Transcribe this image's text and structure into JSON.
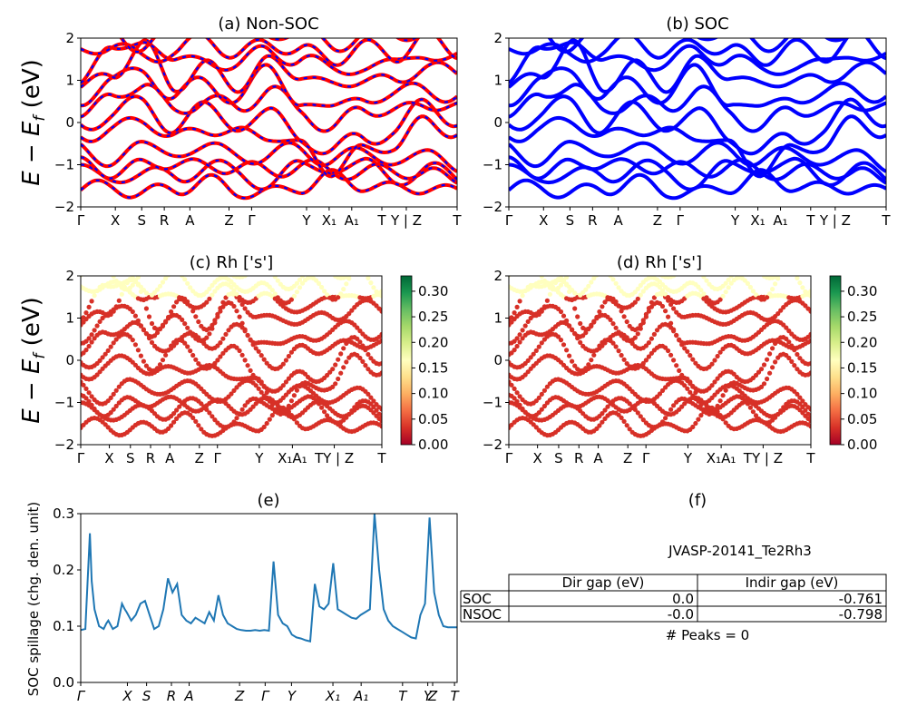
{
  "colors": {
    "bands_nonsoc_primary": "#ff0000",
    "bands_nonsoc_secondary": "#0000ff",
    "bands_soc": "#0000ff",
    "spillage_line": "#1f77b4",
    "colormap": [
      "#a50026",
      "#d73027",
      "#f46d43",
      "#fdae61",
      "#fee08b",
      "#ffffbf",
      "#d9ef8b",
      "#a6d96a",
      "#66bd63",
      "#1a9850",
      "#006837"
    ]
  },
  "kpath_labels": [
    "Γ",
    "X",
    "S",
    "R",
    "A",
    "Z",
    "Γ",
    "Y",
    "X₁",
    "A₁",
    "T",
    "Y | Z",
    "T"
  ],
  "spillage_kpath_labels": [
    "Γ",
    "X",
    "S",
    "R",
    "A",
    "Z",
    "Γ",
    "Y",
    "X₁",
    "A₁",
    "T",
    "Y",
    "Z",
    "T"
  ],
  "y_axis_label": "E − E_f (eV)",
  "panels": {
    "a": {
      "title": "(a) Non-SOC"
    },
    "b": {
      "title": "(b) SOC"
    },
    "c": {
      "title": "(c)  Rh ['s']"
    },
    "d": {
      "title": "(d) Rh ['s']"
    },
    "e": {
      "title": "(e)",
      "ylabel": "SOC spillage (chg. den. unit)"
    },
    "f": {
      "title": "(f)",
      "material": "JVASP-20141_Te2Rh3",
      "table": {
        "headers": [
          "",
          "Dir gap (eV)",
          "Indir gap (eV)"
        ],
        "rows": [
          [
            "SOC",
            "0.0",
            "-0.761"
          ],
          [
            "NSOC",
            "-0.0",
            "-0.798"
          ]
        ]
      },
      "peaks_text": "# Peaks = 0"
    }
  },
  "chart_data": [
    {
      "type": "line",
      "title": "(a) Non-SOC",
      "ylabel": "E − E_f (eV)",
      "ylim": [
        -2,
        2
      ],
      "yticks": [
        -2,
        -1,
        0,
        1,
        2
      ],
      "xticklabels": [
        "Γ",
        "X",
        "S",
        "R",
        "A",
        "Z",
        "Γ",
        "Y",
        "X₁",
        "A₁",
        "T",
        "Y | Z",
        "T"
      ],
      "series": [
        {
          "name": "",
          "values": [
            -1.6,
            -1.5,
            -1.7,
            -1.55,
            -1.4,
            -1.6,
            -1.7,
            -1.5,
            -1.3,
            -1.45,
            -1.6,
            -1.5,
            -1.7
          ]
        },
        {
          "name": "",
          "values": [
            -1.0,
            -1.15,
            -1.05,
            -0.9,
            -1.1,
            -1.0,
            -1.2,
            -1.0,
            -1.15,
            -1.2,
            -1.1,
            -1.25,
            -1.3
          ]
        },
        {
          "name": "",
          "values": [
            -0.3,
            -0.2,
            0.1,
            -0.4,
            -0.1,
            -0.3,
            -0.25,
            -0.6,
            -1.1,
            -0.7,
            -0.5,
            0.0,
            -0.2
          ]
        },
        {
          "name": "",
          "values": [
            0.3,
            0.5,
            1.0,
            0.2,
            0.6,
            0.3,
            0.8,
            0.3,
            -0.2,
            0.4,
            0.2,
            0.5,
            0.3
          ]
        },
        {
          "name": "",
          "values": [
            0.75,
            1.2,
            1.8,
            0.9,
            1.3,
            0.9,
            1.4,
            1.2,
            0.8,
            1.1,
            0.9,
            1.4,
            1.1
          ]
        },
        {
          "name": "",
          "values": [
            1.6,
            1.9,
            1.5,
            1.7,
            2.0,
            1.6,
            1.9,
            1.7,
            1.5,
            1.8,
            1.6,
            2.0,
            1.7
          ]
        }
      ]
    },
    {
      "type": "line",
      "title": "(b) SOC",
      "ylim": [
        -2,
        2
      ],
      "yticks": [
        -2,
        -1,
        0,
        1,
        2
      ],
      "xticklabels": [
        "Γ",
        "X",
        "S",
        "R",
        "A",
        "Z",
        "Γ",
        "Y",
        "X₁",
        "A₁",
        "T",
        "Y | Z",
        "T"
      ],
      "series": [
        {
          "name": "",
          "values": [
            -1.6,
            -1.5,
            -1.7,
            -1.55,
            -1.4,
            -1.6,
            -1.7,
            -1.5,
            -1.3,
            -1.45,
            -1.6,
            -1.5,
            -1.7
          ]
        },
        {
          "name": "",
          "values": [
            -1.0,
            -1.15,
            -1.05,
            -0.9,
            -1.1,
            -1.0,
            -1.2,
            -1.0,
            -1.15,
            -1.2,
            -1.1,
            -1.25,
            -1.3
          ]
        },
        {
          "name": "",
          "values": [
            -0.3,
            -0.2,
            0.1,
            -0.4,
            -0.1,
            -0.3,
            -0.25,
            -0.6,
            -1.1,
            -0.7,
            -0.5,
            0.0,
            -0.2
          ]
        },
        {
          "name": "",
          "values": [
            0.3,
            0.5,
            1.0,
            0.2,
            0.6,
            0.3,
            0.8,
            0.3,
            -0.2,
            0.4,
            0.2,
            0.5,
            0.3
          ]
        },
        {
          "name": "",
          "values": [
            0.75,
            1.2,
            1.8,
            0.9,
            1.3,
            0.9,
            1.4,
            1.2,
            0.8,
            1.1,
            0.9,
            1.4,
            1.1
          ]
        },
        {
          "name": "",
          "values": [
            1.6,
            1.9,
            1.5,
            1.7,
            2.0,
            1.6,
            1.9,
            1.7,
            1.5,
            1.8,
            1.6,
            2.0,
            1.7
          ]
        }
      ]
    },
    {
      "type": "scatter",
      "title": "(c)  Rh ['s']",
      "ylim": [
        -2,
        2
      ],
      "yticks": [
        -2,
        -1,
        0,
        1,
        2
      ],
      "colorbar": {
        "range": [
          0.0,
          0.33
        ],
        "ticks": [
          "0.00",
          "0.05",
          "0.10",
          "0.15",
          "0.20",
          "0.25",
          "0.30"
        ]
      },
      "xticklabels": [
        "Γ",
        "X",
        "S",
        "R",
        "A",
        "Z",
        "Γ",
        "Y",
        "X₁A₁",
        "TY | Z",
        "T"
      ]
    },
    {
      "type": "scatter",
      "title": "(d) Rh ['s']",
      "ylim": [
        -2,
        2
      ],
      "yticks": [
        -2,
        -1,
        0,
        1,
        2
      ],
      "colorbar": {
        "range": [
          0.0,
          0.33
        ],
        "ticks": [
          "0.00",
          "0.05",
          "0.10",
          "0.15",
          "0.20",
          "0.25",
          "0.30"
        ]
      },
      "xticklabels": [
        "Γ",
        "X",
        "S",
        "R",
        "A",
        "Z",
        "Γ",
        "Y",
        "X₁A₁",
        "TY | Z",
        "T"
      ]
    },
    {
      "type": "line",
      "title": "(e)",
      "ylabel": "SOC spillage (chg. den. unit)",
      "ylim": [
        0.0,
        0.3
      ],
      "yticks": [
        "0.0",
        "0.1",
        "0.2",
        "0.3"
      ],
      "xticklabels": [
        "Γ",
        "X",
        "S",
        "R",
        "A",
        "Z",
        "Γ",
        "Y",
        "X₁",
        "A₁",
        "T",
        "Y",
        "Z",
        "T"
      ],
      "x": [
        0,
        5,
        10,
        12,
        15,
        20,
        25,
        28,
        30,
        35,
        40,
        45,
        48,
        50,
        55,
        60,
        65,
        70,
        75,
        80,
        85,
        90,
        95,
        100,
        105,
        110,
        115,
        120,
        125,
        130,
        135,
        140,
        145,
        150,
        155,
        160,
        165,
        170,
        175,
        180,
        185,
        190,
        195,
        200,
        205,
        210,
        215,
        220,
        225,
        230,
        235,
        240,
        245,
        250,
        255,
        260,
        265,
        270,
        275,
        280,
        285,
        290,
        295,
        300,
        305,
        310,
        315,
        320,
        325,
        330,
        335,
        340,
        345,
        350,
        355,
        360,
        365,
        370,
        375,
        380,
        385,
        390,
        395,
        400,
        405,
        410
      ],
      "values": [
        0.093,
        0.095,
        0.265,
        0.18,
        0.13,
        0.1,
        0.095,
        0.105,
        0.11,
        0.095,
        0.1,
        0.14,
        0.13,
        0.125,
        0.11,
        0.12,
        0.14,
        0.145,
        0.12,
        0.095,
        0.1,
        0.13,
        0.185,
        0.16,
        0.175,
        0.12,
        0.11,
        0.105,
        0.115,
        0.11,
        0.105,
        0.125,
        0.11,
        0.155,
        0.12,
        0.105,
        0.1,
        0.095,
        0.093,
        0.092,
        0.092,
        0.093,
        0.092,
        0.093,
        0.092,
        0.215,
        0.12,
        0.105,
        0.1,
        0.085,
        0.08,
        0.078,
        0.075,
        0.073,
        0.175,
        0.135,
        0.13,
        0.14,
        0.212,
        0.13,
        0.125,
        0.12,
        0.115,
        0.113,
        0.12,
        0.125,
        0.13,
        0.3,
        0.2,
        0.13,
        0.11,
        0.1,
        0.095,
        0.09,
        0.085,
        0.08,
        0.078,
        0.12,
        0.14,
        0.293,
        0.16,
        0.12,
        0.1,
        0.098,
        0.098,
        0.098
      ]
    }
  ]
}
